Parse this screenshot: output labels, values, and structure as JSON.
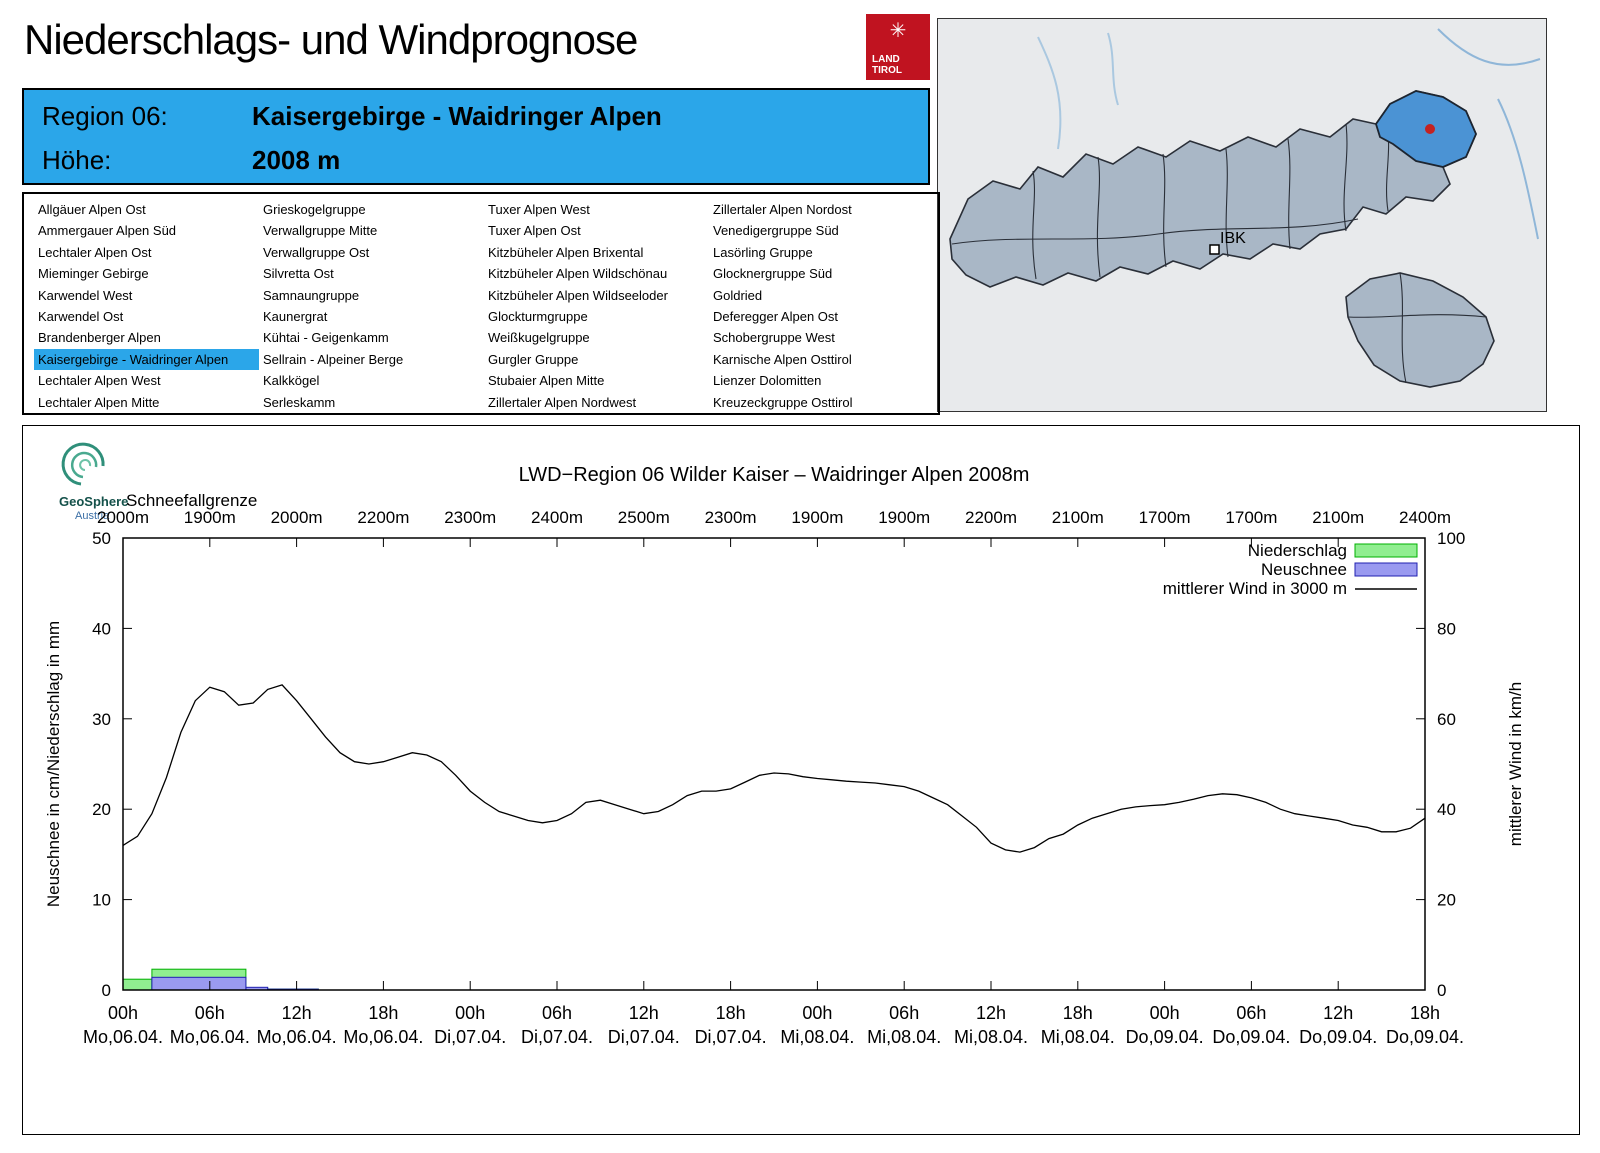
{
  "header": {
    "title": "Niederschlags- und Windprognose",
    "logo": {
      "line1": "LAND",
      "line2": "TIROL",
      "color": "#c01320"
    }
  },
  "region_header": {
    "region_label": "Region 06:",
    "region_value": "Kaisergebirge - Waidringer Alpen",
    "altitude_label": "Höhe:",
    "altitude_value": "2008 m",
    "accent_color": "#2ba6e9"
  },
  "region_list": {
    "selected": "Kaisergebirge - Waidringer Alpen",
    "columns": [
      [
        "Allgäuer Alpen Ost",
        "Ammergauer Alpen Süd",
        "Lechtaler Alpen Ost",
        "Mieminger Gebirge",
        "Karwendel West",
        "Karwendel Ost",
        "Brandenberger Alpen",
        "Kaisergebirge - Waidringer Alpen",
        "Lechtaler Alpen West",
        "Lechtaler Alpen Mitte"
      ],
      [
        "Grieskogelgruppe",
        "Verwallgruppe Mitte",
        "Verwallgruppe Ost",
        "Silvretta Ost",
        "Samnaungruppe",
        "Kaunergrat",
        "Kühtai - Geigenkamm",
        "Sellrain - Alpeiner Berge",
        "Kalkkögel",
        "Serleskamm"
      ],
      [
        "Tuxer Alpen West",
        "Tuxer Alpen Ost",
        "Kitzbüheler Alpen Brixental",
        "Kitzbüheler Alpen Wildschönau",
        "Kitzbüheler Alpen Wildseeloder",
        "Glockturmgruppe",
        "Weißkugelgruppe",
        "Gurgler Gruppe",
        "Stubaier Alpen Mitte",
        "Zillertaler Alpen Nordwest"
      ],
      [
        "Zillertaler Alpen Nordost",
        "Venedigergruppe Süd",
        "Lasörling Gruppe",
        "Glocknergruppe Süd",
        "Goldried",
        "Deferegger Alpen Ost",
        "Schobergruppe West",
        "Karnische Alpen Osttirol",
        "Lienzer Dolomitten",
        "Kreuzeckgruppe Osttirol"
      ]
    ]
  },
  "map": {
    "marker_label": "IBK",
    "highlight_color": "#4b93d4",
    "region_fill": "#a9b7c6",
    "dot_color": "#c32222"
  },
  "chart_data": {
    "type": "line+bar",
    "title": "LWD−Region 06 Wilder Kaiser – Waidringer Alpen 2008m",
    "source": {
      "name": "GeoSphere",
      "sub": "Austria"
    },
    "snowline_label": "Schneefallgrenze",
    "snowline_values": [
      "2000m",
      "1900m",
      "2000m",
      "2200m",
      "2300m",
      "2400m",
      "2500m",
      "2300m",
      "1900m",
      "1900m",
      "2200m",
      "2100m",
      "1700m",
      "1700m",
      "2100m",
      "2400m"
    ],
    "ylabel_left": "Neuschnee in cm/Niederschlag in mm",
    "ylabel_right": "mittlerer Wind in km/h",
    "ylim_left": [
      0,
      50
    ],
    "ylim_right": [
      0,
      100
    ],
    "yticks_left": [
      0,
      10,
      20,
      30,
      40,
      50
    ],
    "yticks_right": [
      0,
      20,
      40,
      60,
      80,
      100
    ],
    "x_hours_total": 90,
    "x_ticks": [
      {
        "hour": 0,
        "time": "00h",
        "date": "Mo,06.04."
      },
      {
        "hour": 6,
        "time": "06h",
        "date": "Mo,06.04."
      },
      {
        "hour": 12,
        "time": "12h",
        "date": "Mo,06.04."
      },
      {
        "hour": 18,
        "time": "18h",
        "date": "Mo,06.04."
      },
      {
        "hour": 24,
        "time": "00h",
        "date": "Di,07.04."
      },
      {
        "hour": 30,
        "time": "06h",
        "date": "Di,07.04."
      },
      {
        "hour": 36,
        "time": "12h",
        "date": "Di,07.04."
      },
      {
        "hour": 42,
        "time": "18h",
        "date": "Di,07.04."
      },
      {
        "hour": 48,
        "time": "00h",
        "date": "Mi,08.04."
      },
      {
        "hour": 54,
        "time": "06h",
        "date": "Mi,08.04."
      },
      {
        "hour": 60,
        "time": "12h",
        "date": "Mi,08.04."
      },
      {
        "hour": 66,
        "time": "18h",
        "date": "Mi,08.04."
      },
      {
        "hour": 72,
        "time": "00h",
        "date": "Do,09.04."
      },
      {
        "hour": 78,
        "time": "06h",
        "date": "Do,09.04."
      },
      {
        "hour": 84,
        "time": "12h",
        "date": "Do,09.04."
      },
      {
        "hour": 90,
        "time": "18h",
        "date": "Do,09.04."
      }
    ],
    "legend": [
      {
        "label": "Niederschlag",
        "type": "box",
        "fill": "#90ee90",
        "edge": "#00b000"
      },
      {
        "label": "Neuschnee",
        "type": "box",
        "fill": "#9a9af0",
        "edge": "#2020b0"
      },
      {
        "label": "mittlerer Wind in 3000 m",
        "type": "line",
        "color": "#000000"
      }
    ],
    "precip_bars": [
      {
        "start": 0,
        "end": 2,
        "value": 1.2
      },
      {
        "start": 2,
        "end": 8.5,
        "value": 2.3
      },
      {
        "start": 8.5,
        "end": 10,
        "value": 0.2
      },
      {
        "start": 10,
        "end": 13.5,
        "value": 0.1
      }
    ],
    "snow_bars": [
      {
        "start": 2,
        "end": 8.5,
        "value": 1.4
      },
      {
        "start": 8.5,
        "end": 10,
        "value": 0.3
      },
      {
        "start": 10,
        "end": 13.5,
        "value": 0.1
      }
    ],
    "wind_series": {
      "name": "mittlerer Wind in 3000 m",
      "axis": "right",
      "unit": "km/h",
      "hour_step": 1,
      "values": [
        32,
        34,
        39,
        47,
        57,
        64,
        67,
        66,
        63,
        63.5,
        66.5,
        67.5,
        64,
        60,
        56,
        52.5,
        50.5,
        50,
        50.5,
        51.5,
        52.5,
        52,
        50.5,
        47.5,
        44,
        41.5,
        39.5,
        38.5,
        37.5,
        37,
        37.5,
        39,
        41.5,
        42,
        41,
        40,
        39,
        39.5,
        41,
        43,
        44,
        44,
        44.5,
        46,
        47.5,
        48,
        47.8,
        47.2,
        46.8,
        46.5,
        46.2,
        46,
        45.8,
        45.4,
        45,
        44,
        42.5,
        41,
        38.5,
        36,
        32.5,
        31,
        30.5,
        31.5,
        33.5,
        34.5,
        36.5,
        38,
        39,
        40,
        40.5,
        40.8,
        41,
        41.5,
        42.2,
        43,
        43.4,
        43.2,
        42.5,
        41.5,
        40,
        39,
        38.5,
        38,
        37.5,
        36.5,
        36,
        35,
        35,
        35.8,
        38
      ]
    }
  }
}
